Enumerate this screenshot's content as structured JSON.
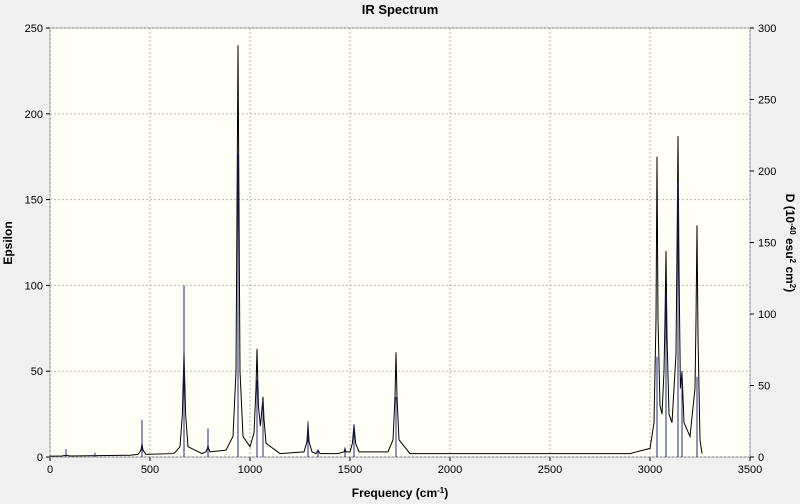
{
  "chart_data": {
    "type": "line",
    "title": "IR Spectrum",
    "x_label": [
      "Frequency (cm",
      "-1",
      ")"
    ],
    "y_label": "Epsilon",
    "y2_label": [
      "D (10",
      "-40",
      " esu",
      "2",
      " cm",
      "2",
      ")"
    ],
    "xlim": [
      0,
      3500
    ],
    "xticks": [
      0,
      500,
      1000,
      1500,
      2000,
      2500,
      3000,
      3500
    ],
    "ylim": [
      0,
      250
    ],
    "yticks": [
      0,
      50,
      100,
      150,
      200,
      250
    ],
    "y2lim": [
      0,
      300
    ],
    "y2ticks": [
      0,
      50,
      100,
      150,
      200,
      250,
      300
    ],
    "grid": true,
    "series": [
      {
        "type": "line",
        "color": "#000000",
        "x": [
          0,
          60,
          80,
          100,
          400,
          440,
          455,
          460,
          465,
          480,
          620,
          650,
          662,
          670,
          678,
          690,
          760,
          780,
          787,
          790,
          793,
          800,
          880,
          915,
          930,
          940,
          950,
          965,
          1000,
          1020,
          1030,
          1035,
          1042,
          1052,
          1060,
          1065,
          1070,
          1080,
          1150,
          1270,
          1285,
          1290,
          1295,
          1310,
          1330,
          1340,
          1350,
          1440,
          1470,
          1475,
          1480,
          1500,
          1512,
          1520,
          1528,
          1545,
          1690,
          1715,
          1725,
          1730,
          1735,
          1745,
          1800,
          2900,
          3000,
          3020,
          3030,
          3035,
          3040,
          3050,
          3060,
          3070,
          3075,
          3080,
          3085,
          3095,
          3110,
          3130,
          3135,
          3140,
          3145,
          3152,
          3160,
          3170,
          3200,
          3225,
          3230,
          3235,
          3240,
          3250,
          3260
        ],
        "values": [
          0.5,
          0.6,
          1,
          0.6,
          1,
          1.5,
          4,
          8,
          4,
          1.5,
          2,
          6,
          25,
          62,
          25,
          6,
          2,
          3,
          5,
          7,
          5,
          3,
          4,
          12,
          50,
          240,
          50,
          12,
          6,
          14,
          40,
          63,
          30,
          18,
          28,
          35,
          22,
          8,
          2,
          3,
          9,
          20,
          9,
          3,
          2,
          4,
          2,
          2,
          3,
          5,
          3,
          3,
          8,
          19,
          8,
          3,
          3,
          10,
          35,
          61,
          35,
          10,
          2,
          2,
          5,
          20,
          80,
          175,
          80,
          30,
          25,
          50,
          80,
          120,
          70,
          25,
          20,
          60,
          120,
          187,
          110,
          40,
          50,
          20,
          12,
          40,
          80,
          135,
          70,
          10,
          2
        ]
      },
      {
        "type": "stick",
        "axis": "y2",
        "color": "#1f2a8c",
        "x": [
          80,
          225,
          460,
          670,
          790,
          940,
          1035,
          1065,
          1290,
          1340,
          1475,
          1520,
          1730,
          3035,
          3080,
          3140,
          3160,
          3235
        ],
        "values": [
          5.5,
          3,
          26,
          120,
          20,
          212,
          54,
          40,
          25,
          5,
          6,
          22,
          42,
          70,
          114,
          192,
          60,
          56
        ]
      }
    ]
  }
}
